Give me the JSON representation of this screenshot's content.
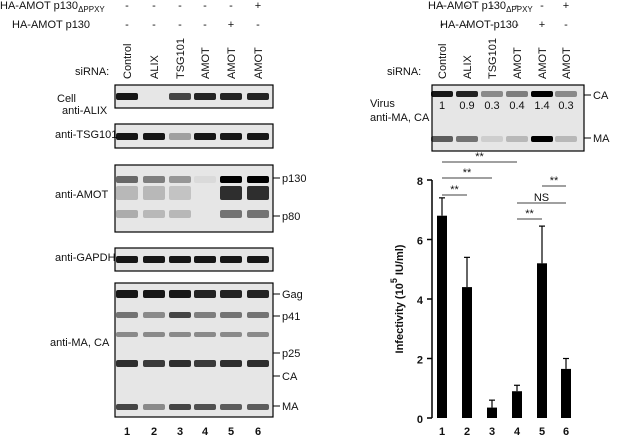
{
  "left_panel": {
    "constructs": [
      {
        "name": "HA-AMOT p130",
        "subscript": "ΔPPXY",
        "signs": [
          "-",
          "-",
          "-",
          "-",
          "-",
          "+"
        ]
      },
      {
        "name": "HA-AMOT p130",
        "signs": [
          "-",
          "-",
          "-",
          "-",
          "+",
          "-"
        ]
      }
    ],
    "sirna_label": "siRNA:",
    "sirna": [
      "Control",
      "ALIX",
      "TSG101",
      "AMOT",
      "AMOT",
      "AMOT"
    ],
    "title": "Cell",
    "blots": [
      {
        "label": "anti-ALIX"
      },
      {
        "label": "anti-TSG101"
      },
      {
        "label": "anti-AMOT",
        "markers": [
          "p130",
          "p80"
        ]
      },
      {
        "label": "anti-GAPDH"
      },
      {
        "label": "anti-MA, CA",
        "markers": [
          "Gag",
          "p41",
          "p25",
          "CA",
          "MA"
        ]
      }
    ],
    "lanes": [
      "1",
      "2",
      "3",
      "4",
      "5",
      "6"
    ]
  },
  "right_panel": {
    "constructs": [
      {
        "name": "HA-AMOT p130",
        "subscript": "ΔPPXY",
        "signs": [
          "-",
          "-",
          "-",
          "-",
          "-",
          "+"
        ]
      },
      {
        "name": "HA-AMOT p130",
        "signs": [
          "-",
          "-",
          "-",
          "-",
          "+",
          "-"
        ]
      }
    ],
    "sirna_label": "siRNA:",
    "sirna": [
      "Control",
      "ALIX",
      "TSG101",
      "AMOT",
      "AMOT",
      "AMOT"
    ],
    "title": "Virus",
    "blot_label": "anti-MA, CA",
    "quantification": [
      1,
      0.9,
      0.3,
      0.4,
      1.4,
      0.3
    ],
    "markers": [
      "CA",
      "MA"
    ]
  },
  "chart_data": {
    "type": "bar",
    "categories": [
      "1",
      "2",
      "3",
      "4",
      "5",
      "6"
    ],
    "values": [
      6.8,
      4.4,
      0.35,
      0.9,
      5.2,
      1.65
    ],
    "errors": [
      0.6,
      1.0,
      0.25,
      0.2,
      1.25,
      0.35
    ],
    "color": "#000000",
    "ylabel": [
      "Infectivity (10",
      "5",
      " IU/ml)"
    ],
    "ylim": [
      0,
      8
    ],
    "yticks": [
      0,
      2,
      4,
      6,
      8
    ],
    "significance": [
      "**",
      "**",
      "**",
      "**",
      "NS",
      "**"
    ]
  }
}
